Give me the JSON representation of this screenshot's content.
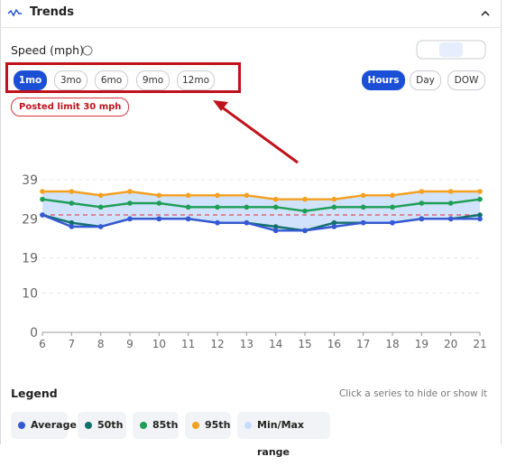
{
  "header": {
    "title": "Trends"
  },
  "panel": {
    "title": "Speed (mph)",
    "periods": [
      "1mo",
      "3mo",
      "6mo",
      "9mo",
      "12mo"
    ],
    "selected_period": "1mo",
    "groupings": [
      "Hours",
      "Day",
      "DOW"
    ],
    "selected_grouping": "Hours",
    "badge": "Posted limit 30 mph"
  },
  "chart_data": {
    "type": "line",
    "x": [
      6,
      7,
      8,
      9,
      10,
      11,
      12,
      13,
      14,
      15,
      16,
      17,
      18,
      19,
      20,
      21
    ],
    "xlim": [
      6,
      21
    ],
    "xticks": [
      6,
      7,
      8,
      9,
      10,
      11,
      12,
      13,
      14,
      15,
      16,
      17,
      18,
      19,
      20,
      21
    ],
    "ylim": [
      0,
      42
    ],
    "yticks": [
      0,
      10,
      19,
      29,
      39
    ],
    "grid": true,
    "posted_limit": 30,
    "range": {
      "name": "Min/Max range",
      "color": "#c9ddfb",
      "low": [
        30,
        27,
        27,
        29,
        29,
        29,
        28,
        28,
        26,
        26,
        27,
        28,
        28,
        29,
        29,
        29
      ],
      "high": [
        36,
        36,
        35,
        36,
        35,
        35,
        35,
        35,
        34,
        34,
        34,
        35,
        35,
        36,
        36,
        36
      ]
    },
    "series": [
      {
        "name": "Average",
        "color": "#3558d4",
        "values": [
          30,
          27,
          27,
          29,
          29,
          29,
          28,
          28,
          26,
          26,
          27,
          28,
          28,
          29,
          29,
          29
        ]
      },
      {
        "name": "50th",
        "color": "#12706b",
        "values": [
          30,
          28,
          27,
          29,
          29,
          29,
          28,
          28,
          27,
          26,
          28,
          28,
          28,
          29,
          29,
          30
        ]
      },
      {
        "name": "85th",
        "color": "#1f9e55",
        "values": [
          34,
          33,
          32,
          33,
          33,
          32,
          32,
          32,
          32,
          31,
          32,
          32,
          32,
          33,
          33,
          34
        ]
      },
      {
        "name": "95th",
        "color": "#f4a020",
        "values": [
          36,
          36,
          35,
          36,
          35,
          35,
          35,
          35,
          34,
          34,
          34,
          35,
          35,
          36,
          36,
          36
        ]
      }
    ]
  },
  "legend": {
    "title": "Legend",
    "hint": "Click a series to hide or show it"
  }
}
